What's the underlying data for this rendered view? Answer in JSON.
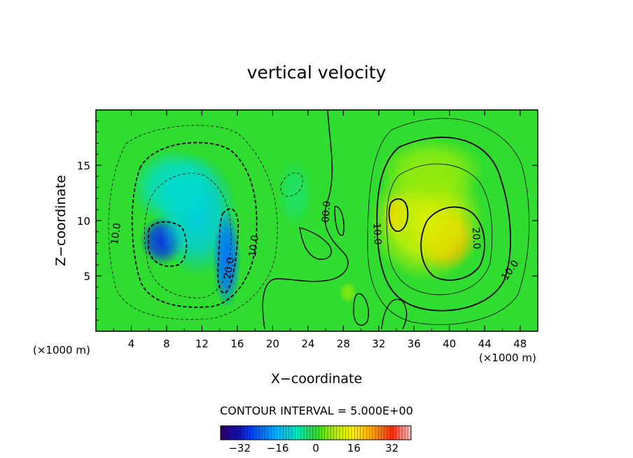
{
  "chart_data": {
    "type": "heatmap",
    "title": "vertical velocity",
    "xlabel": "X−coordinate",
    "ylabel": "Z−coordinate",
    "x_unit_left": "(×1000 m)",
    "x_unit_right": "(×1000 m)",
    "xlim": [
      0,
      50
    ],
    "ylim": [
      0,
      20
    ],
    "x_ticks": [
      4,
      8,
      12,
      16,
      20,
      24,
      28,
      32,
      36,
      40,
      44,
      48
    ],
    "y_ticks": [
      5,
      10,
      15
    ],
    "contour_interval_text": "CONTOUR INTERVAL = 5.000E+00",
    "colorbar": {
      "range": [
        -40,
        40
      ],
      "ticks": [
        -32,
        -16,
        0,
        16,
        32
      ],
      "tick_labels": [
        "−32",
        "−16",
        "0",
        "16",
        "32"
      ]
    },
    "contour_labels": [
      {
        "text": "10.0",
        "x": 2.3,
        "z": 8.8,
        "angle": -82
      },
      {
        "text": "20.0",
        "x": 15.1,
        "z": 5.7,
        "angle": -80
      },
      {
        "text": "10.0",
        "x": 17.9,
        "z": 7.7,
        "angle": -82
      },
      {
        "text": "00.0",
        "x": 26.1,
        "z": 10.8,
        "angle": -86
      },
      {
        "text": "10.0",
        "x": 31.8,
        "z": 8.8,
        "angle": 87
      },
      {
        "text": "20.0",
        "x": 43.0,
        "z": 8.4,
        "angle": 87
      },
      {
        "text": "10.0",
        "x": 46.9,
        "z": 5.5,
        "angle": -55
      }
    ],
    "cells": [
      {
        "x": 7.5,
        "z": 8.2,
        "value": -28,
        "sx": 2.5,
        "sz": 2.2
      },
      {
        "x": 11.5,
        "z": 10.5,
        "value": -12,
        "sx": 4.5,
        "sz": 5.5
      },
      {
        "x": 14.8,
        "z": 6.5,
        "value": -22,
        "sx": 1.6,
        "sz": 4.5
      },
      {
        "x": 9.0,
        "z": 13.0,
        "value": -10,
        "sx": 5.0,
        "sz": 3.5
      },
      {
        "x": 22.5,
        "z": 12.5,
        "value": -3,
        "sx": 2.0,
        "sz": 3.0
      },
      {
        "x": 39.5,
        "z": 8.5,
        "value": 24,
        "sx": 3.5,
        "sz": 3.0
      },
      {
        "x": 34.0,
        "z": 10.5,
        "value": 22,
        "sx": 1.5,
        "sz": 2.0
      },
      {
        "x": 37.5,
        "z": 10.0,
        "value": 12,
        "sx": 6.5,
        "sz": 5.5
      },
      {
        "x": 38.0,
        "z": 14.5,
        "value": 6,
        "sx": 6.0,
        "sz": 3.0
      },
      {
        "x": 28.5,
        "z": 3.5,
        "value": 5,
        "sx": 1.0,
        "sz": 1.0
      }
    ]
  }
}
